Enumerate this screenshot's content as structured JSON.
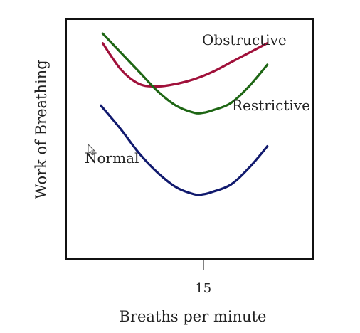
{
  "chart_data": {
    "type": "line",
    "xlabel": "Breaths per minute",
    "ylabel": "Work of Breathing",
    "xticks": [
      15
    ],
    "xlim": [
      0,
      27
    ],
    "ylim": [
      0,
      100
    ],
    "grid": false,
    "legend": "none",
    "series": [
      {
        "name": "Obstructive",
        "color": "#a0103a",
        "x": [
          4,
          6,
          8,
          10,
          12,
          14,
          16,
          18,
          20,
          22
        ],
        "y": [
          90,
          79,
          73,
          72,
          73,
          75,
          78,
          82,
          86,
          90
        ]
      },
      {
        "name": "Restrictive",
        "color": "#1e6614",
        "x": [
          4,
          6,
          8,
          10,
          12,
          14,
          15,
          16,
          18,
          20,
          22
        ],
        "y": [
          94,
          86,
          78,
          70,
          64,
          61,
          61,
          62,
          65,
          72,
          81
        ]
      },
      {
        "name": "Normal",
        "color": "#111a6e",
        "x": [
          3.8,
          6,
          8,
          10,
          12,
          14,
          15,
          16,
          18,
          20,
          22
        ],
        "y": [
          64,
          54,
          44,
          36,
          30,
          27,
          27,
          28,
          31,
          38,
          47
        ]
      }
    ]
  }
}
